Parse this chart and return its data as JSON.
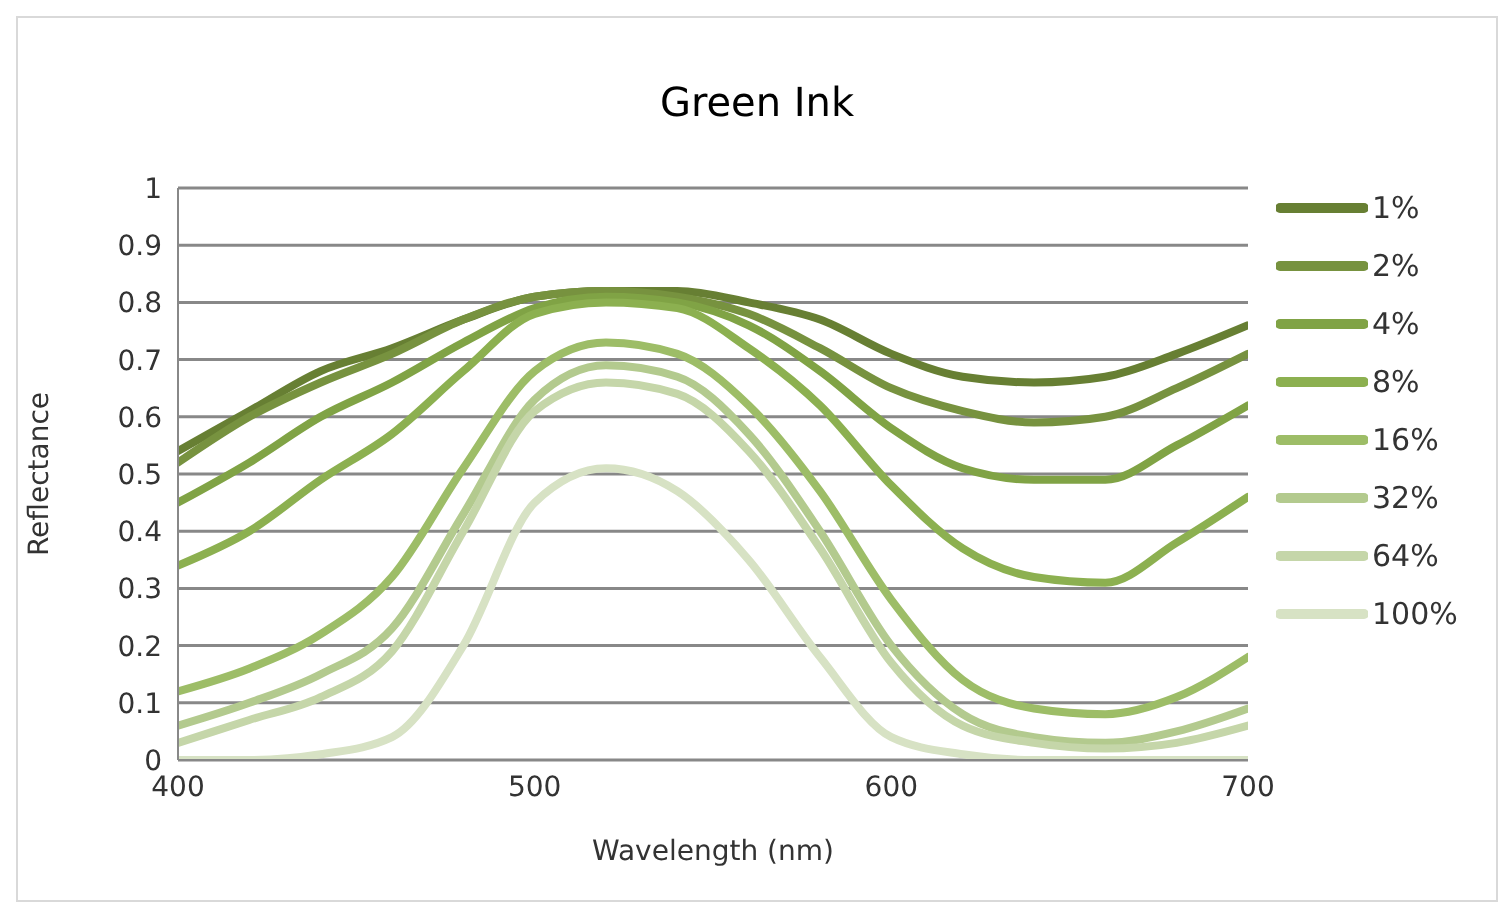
{
  "chart_data": {
    "type": "line",
    "title": "Green Ink",
    "xlabel": "Wavelength (nm)",
    "ylabel": "Reflectance",
    "x": [
      400,
      420,
      440,
      460,
      480,
      500,
      520,
      540,
      560,
      580,
      600,
      620,
      640,
      660,
      680,
      700
    ],
    "series": [
      {
        "name": "1%",
        "color": "#677f33",
        "values": [
          0.54,
          0.61,
          0.68,
          0.72,
          0.77,
          0.81,
          0.82,
          0.82,
          0.8,
          0.77,
          0.71,
          0.67,
          0.66,
          0.67,
          0.71,
          0.76
        ]
      },
      {
        "name": "2%",
        "color": "#77923f",
        "values": [
          0.52,
          0.6,
          0.66,
          0.71,
          0.77,
          0.81,
          0.82,
          0.81,
          0.78,
          0.72,
          0.65,
          0.61,
          0.59,
          0.6,
          0.65,
          0.71
        ]
      },
      {
        "name": "4%",
        "color": "#80a345",
        "values": [
          0.45,
          0.52,
          0.6,
          0.66,
          0.73,
          0.79,
          0.81,
          0.8,
          0.76,
          0.68,
          0.58,
          0.51,
          0.49,
          0.49,
          0.55,
          0.62
        ]
      },
      {
        "name": "8%",
        "color": "#8cb050",
        "values": [
          0.34,
          0.4,
          0.49,
          0.57,
          0.68,
          0.78,
          0.8,
          0.79,
          0.72,
          0.62,
          0.48,
          0.37,
          0.32,
          0.31,
          0.38,
          0.46
        ]
      },
      {
        "name": "16%",
        "color": "#9dbd67",
        "values": [
          0.12,
          0.16,
          0.22,
          0.32,
          0.51,
          0.68,
          0.73,
          0.71,
          0.62,
          0.47,
          0.28,
          0.14,
          0.09,
          0.08,
          0.11,
          0.18
        ]
      },
      {
        "name": "32%",
        "color": "#b3ca8e",
        "values": [
          0.06,
          0.1,
          0.15,
          0.23,
          0.43,
          0.63,
          0.69,
          0.67,
          0.57,
          0.4,
          0.2,
          0.08,
          0.04,
          0.03,
          0.05,
          0.09
        ]
      },
      {
        "name": "64%",
        "color": "#c5d6a9",
        "values": [
          0.03,
          0.07,
          0.11,
          0.19,
          0.4,
          0.61,
          0.66,
          0.64,
          0.54,
          0.37,
          0.17,
          0.06,
          0.03,
          0.02,
          0.03,
          0.06
        ]
      },
      {
        "name": "100%",
        "color": "#d7e2c4",
        "values": [
          0,
          0,
          0.01,
          0.04,
          0.2,
          0.45,
          0.51,
          0.47,
          0.35,
          0.18,
          0.04,
          0.01,
          0,
          0,
          0,
          0
        ]
      }
    ],
    "xlim": [
      400,
      700
    ],
    "xticks": [
      400,
      500,
      600,
      700
    ],
    "ylim": [
      0,
      1
    ],
    "yticks": [
      0,
      0.1,
      0.2,
      0.3,
      0.4,
      0.5,
      0.6,
      0.7,
      0.8,
      0.9,
      1
    ],
    "grid": "y",
    "legend": "right",
    "marker": "none",
    "line_style": "solid"
  }
}
